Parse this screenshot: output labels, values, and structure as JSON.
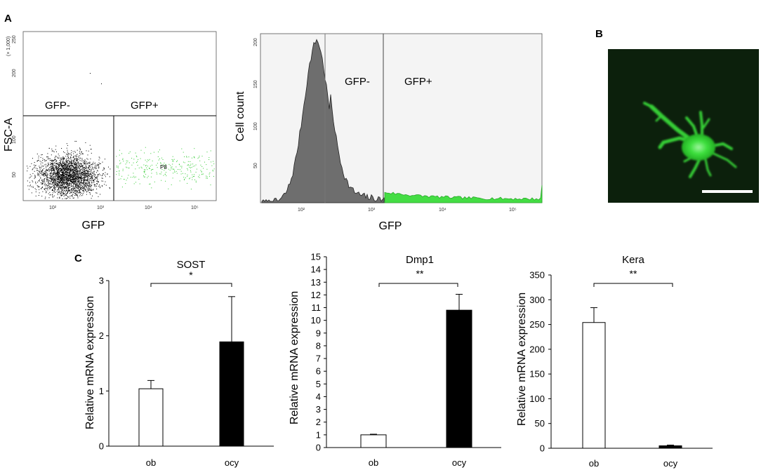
{
  "panels": {
    "a": "A",
    "b": "B",
    "c": "C"
  },
  "scatter": {
    "ylabel": "FSC-A",
    "y_multiplier": "(× 1,000)",
    "y_ticks": [
      "250",
      "200",
      "150",
      "100",
      "50"
    ],
    "xlabel": "GFP",
    "x_ticks": [
      "10²",
      "10³",
      "10⁴",
      "10⁵"
    ],
    "gate_neg": "GFP-",
    "gate_pos": "GFP+",
    "population_label": "P8",
    "colors": {
      "neg": "#000000",
      "pos": "#33cc33"
    }
  },
  "histogram": {
    "ylabel": "Cell count",
    "xlabel": "GFP",
    "y_ticks": [
      "200",
      "150",
      "100",
      "50"
    ],
    "x_ticks": [
      "10²",
      "10³",
      "10⁴",
      "10⁵"
    ],
    "gate_neg": "GFP-",
    "gate_pos": "GFP+",
    "colors": {
      "neg_fill": "#6e6e6e",
      "pos_fill": "#44dd44",
      "background": "#f4f4f4"
    }
  },
  "micrograph": {
    "colors": {
      "background": "#0c200c",
      "cell": "#33d633",
      "scalebar": "#ffffff"
    }
  },
  "chart_data": [
    {
      "type": "bar",
      "title": "SOST",
      "ylabel": "Relative mRNA expression",
      "categories": [
        "ob",
        "ocy"
      ],
      "values": [
        1.04,
        1.89
      ],
      "errors": [
        0.15,
        0.82
      ],
      "ylim": [
        0,
        3
      ],
      "yticks": [
        "0",
        "1",
        "2",
        "3"
      ],
      "significance": "*",
      "colors": [
        "#ffffff",
        "#000000"
      ]
    },
    {
      "type": "bar",
      "title": "Dmp1",
      "ylabel": "Relative mRNA expression",
      "categories": [
        "ob",
        "ocy"
      ],
      "values": [
        1.0,
        10.8
      ],
      "errors": [
        0.05,
        1.25
      ],
      "ylim": [
        0,
        15
      ],
      "yticks": [
        "0",
        "1",
        "2",
        "3",
        "4",
        "5",
        "6",
        "7",
        "8",
        "9",
        "10",
        "11",
        "12",
        "13",
        "14",
        "15"
      ],
      "significance": "**",
      "colors": [
        "#ffffff",
        "#000000"
      ]
    },
    {
      "type": "bar",
      "title": "Kera",
      "ylabel": "Relative mRNA expression",
      "categories": [
        "ob",
        "ocy"
      ],
      "values": [
        254,
        5
      ],
      "errors": [
        30,
        1.5
      ],
      "ylim": [
        0,
        350
      ],
      "yticks": [
        "0",
        "50",
        "100",
        "150",
        "200",
        "250",
        "300",
        "350"
      ],
      "significance": "**",
      "colors": [
        "#ffffff",
        "#000000"
      ]
    }
  ]
}
